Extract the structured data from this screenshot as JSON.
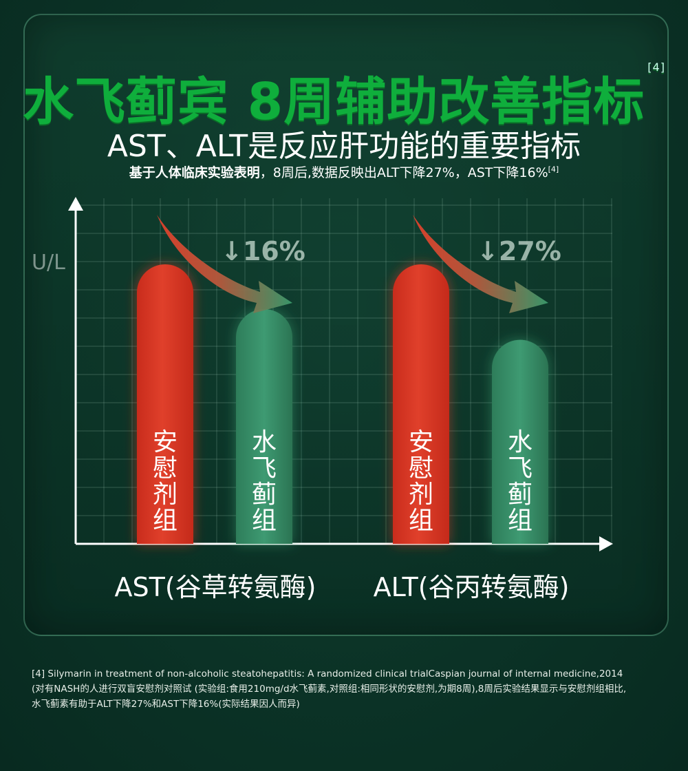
{
  "title": "水飞蓟宾 8周辅助改善指标",
  "title_ref": "[4]",
  "subtitle": "AST、ALT是反应肝功能的重要指标",
  "note_bold": "基于人体临床实验表明",
  "note_text": "，8周后,数据反映出ALT下降27%，AST下降16%",
  "note_ref": "[4]",
  "colors": {
    "placebo": "#e0402b",
    "silymarin": "#3e9a72",
    "title": "#0fae3c"
  },
  "chart_data": {
    "type": "bar",
    "ylabel": "U/L",
    "categories": [
      "AST(谷草转氨酶)",
      "ALT(谷丙转氨酶)"
    ],
    "series": [
      {
        "name": "安慰剂组",
        "values": [
          100,
          100
        ]
      },
      {
        "name": "水飞蓟组",
        "values": [
          84,
          73
        ]
      }
    ],
    "reductions": [
      "↓16%",
      "↓27%"
    ],
    "ylim": [
      0,
      100
    ],
    "grid": true
  },
  "bar_labels": {
    "placebo": [
      "安",
      "慰",
      "剂",
      "组"
    ],
    "silymarin": [
      "水",
      "飞",
      "蓟",
      "组"
    ]
  },
  "reference": {
    "line1": "[4] Silymarin in treatment of non-alcoholic steatohepatitis: A randomized clinical trialCaspian journal of internal medicine,2014",
    "line2": "(对有NASH的人进行双盲安慰剂对照试 (实验组:食用210mg/d水飞蓟素,对照组:相同形状的安慰剂,为期8周),8周后实验结果显示与安慰剂组相比,",
    "line3": "水飞蓟素有助于ALT下降27%和AST下降16%(实际结果因人而异)"
  }
}
